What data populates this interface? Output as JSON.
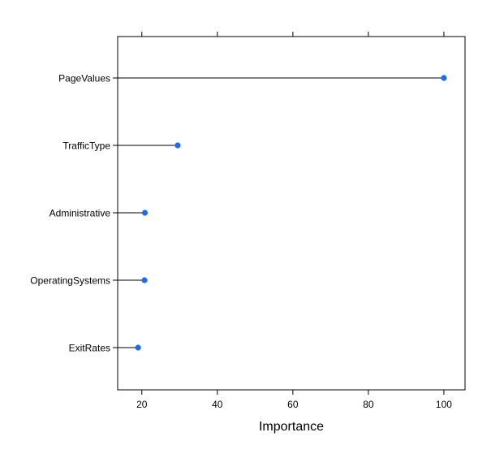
{
  "chart_data": {
    "type": "dot",
    "categories": [
      "PageValues",
      "TrafficType",
      "Administrative",
      "OperatingSystems",
      "ExitRates"
    ],
    "values": [
      100,
      29.5,
      20.8,
      20.7,
      19.0
    ],
    "title": "",
    "xlabel": "Importance",
    "ylabel": "",
    "xticks": [
      20,
      40,
      60,
      80,
      100
    ],
    "tick_labels": [
      "20",
      "40",
      "60",
      "80",
      "100"
    ],
    "xlim": [
      13.6,
      105.6
    ],
    "grid": false,
    "colors": {
      "point": "#1a6cf5",
      "line": "#000000"
    }
  }
}
